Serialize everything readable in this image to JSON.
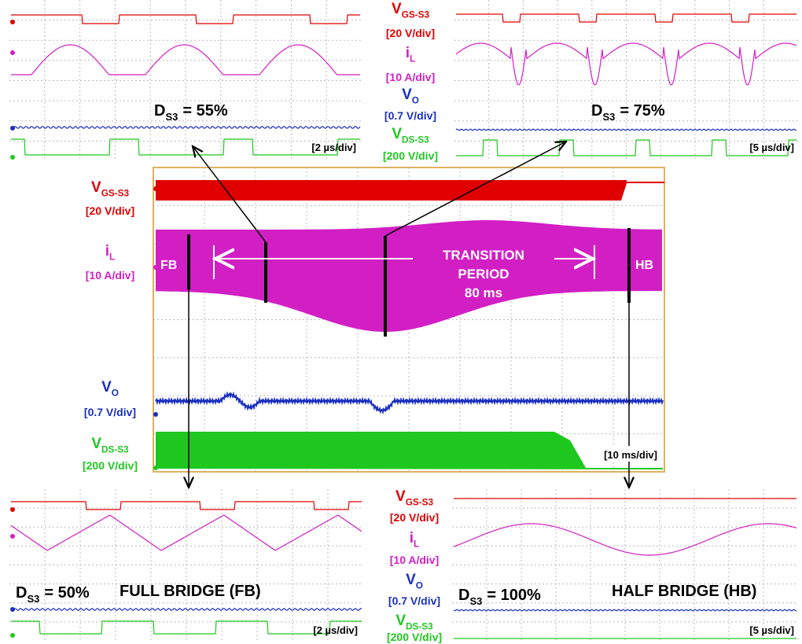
{
  "top_left": {
    "duty_symbol": "D",
    "duty_sub": "S3",
    "duty_value": "= 55%",
    "timebase": "[2 µs/div]"
  },
  "top_right": {
    "duty_symbol": "D",
    "duty_sub": "S3",
    "duty_value": "= 75%",
    "timebase": "[5 µs/div]"
  },
  "bottom_left": {
    "duty_symbol": "D",
    "duty_sub": "S3",
    "duty_value": "= 50%",
    "mode": "FULL BRIDGE (FB)",
    "timebase": "[2 µs/div]"
  },
  "bottom_right": {
    "duty_symbol": "D",
    "duty_sub": "S3",
    "duty_value": "= 100%",
    "mode": "HALF BRIDGE (HB)",
    "timebase": "[5 µs/div]"
  },
  "main": {
    "fb": "FB",
    "hb": "HB",
    "transition": [
      "TRANSITION",
      "PERIOD",
      "80 ms"
    ],
    "timebase": "[10 ms/div]"
  },
  "channels_top": [
    {
      "symbol": "V",
      "sub": "GS-S3",
      "scale": "[20 V/div]"
    },
    {
      "symbol": "i",
      "sub": "L",
      "scale": "[10 A/div]"
    },
    {
      "symbol": "V",
      "sub": "O",
      "scale": "[0.7 V/div]"
    },
    {
      "symbol": "V",
      "sub": "DS-S3",
      "scale": "[200 V/div]"
    }
  ],
  "channels_main": [
    {
      "symbol": "V",
      "sub": "GS-S3",
      "scale": "[20 V/div]"
    },
    {
      "symbol": "i",
      "sub": "L",
      "scale": "[10 A/div]"
    },
    {
      "symbol": "V",
      "sub": "O",
      "scale": "[0.7 V/div]"
    },
    {
      "symbol": "V",
      "sub": "DS-S3",
      "scale": "[200 V/div]"
    }
  ],
  "channels_bottom": [
    {
      "symbol": "V",
      "sub": "GS-S3",
      "scale": "[20 V/div]"
    },
    {
      "symbol": "i",
      "sub": "L",
      "scale": "[10 A/div]"
    },
    {
      "symbol": "V",
      "sub": "O",
      "scale": "[0.7 V/div]"
    },
    {
      "symbol": "V",
      "sub": "DS-S3",
      "scale": "[200 V/div]"
    }
  ]
}
